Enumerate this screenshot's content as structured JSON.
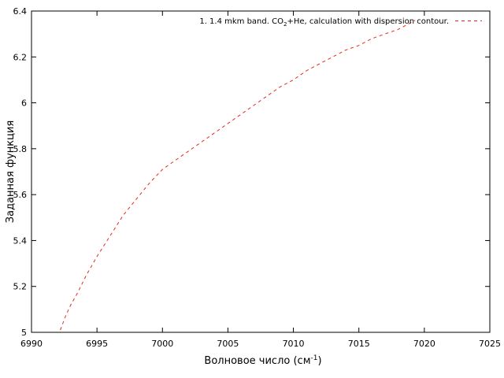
{
  "chart_data": {
    "type": "line",
    "xlabel": "Волновое число (см",
    "xlabel_sup": "-1",
    "xlabel_end": ")",
    "ylabel": "Заданная функция",
    "xlim": [
      6990,
      7025
    ],
    "ylim": [
      5.0,
      6.4
    ],
    "xticks": [
      "6990",
      "6995",
      "7000",
      "7005",
      "7010",
      "7015",
      "7020",
      "7025"
    ],
    "yticks": [
      "5",
      "5.2",
      "5.4",
      "5.6",
      "5.8",
      "6",
      "6.2",
      "6.4"
    ],
    "grid": false,
    "legend_position": "top-right",
    "legend": {
      "prefix": "1. 1.4 mkm band. CO",
      "sub": "2",
      "suffix": "+He, calculation with dispersion contour."
    },
    "colors": {
      "series": "#e8281c",
      "axes": "#000000"
    },
    "series": [
      {
        "name": "1. 1.4 mkm band. CO2+He, calculation with dispersion contour.",
        "style": "dashed",
        "x": [
          6992.2,
          6992.6,
          6993.0,
          6993.5,
          6994.2,
          6995.0,
          6996.0,
          6997.0,
          6998.0,
          6999.0,
          7000.0,
          7001.0,
          7002.0,
          7003.0,
          7004.0,
          7005.0,
          7006.0,
          7007.0,
          7008.0,
          7009.0,
          7010.0,
          7011.0,
          7012.0,
          7013.0,
          7014.0,
          7015.0,
          7016.0,
          7017.0,
          7018.0,
          7019.0,
          7019.3
        ],
        "y": [
          5.01,
          5.07,
          5.12,
          5.17,
          5.25,
          5.33,
          5.42,
          5.51,
          5.58,
          5.65,
          5.71,
          5.75,
          5.79,
          5.83,
          5.87,
          5.91,
          5.95,
          5.99,
          6.03,
          6.07,
          6.1,
          6.14,
          6.17,
          6.2,
          6.23,
          6.25,
          6.28,
          6.3,
          6.32,
          6.35,
          6.36
        ]
      }
    ]
  }
}
